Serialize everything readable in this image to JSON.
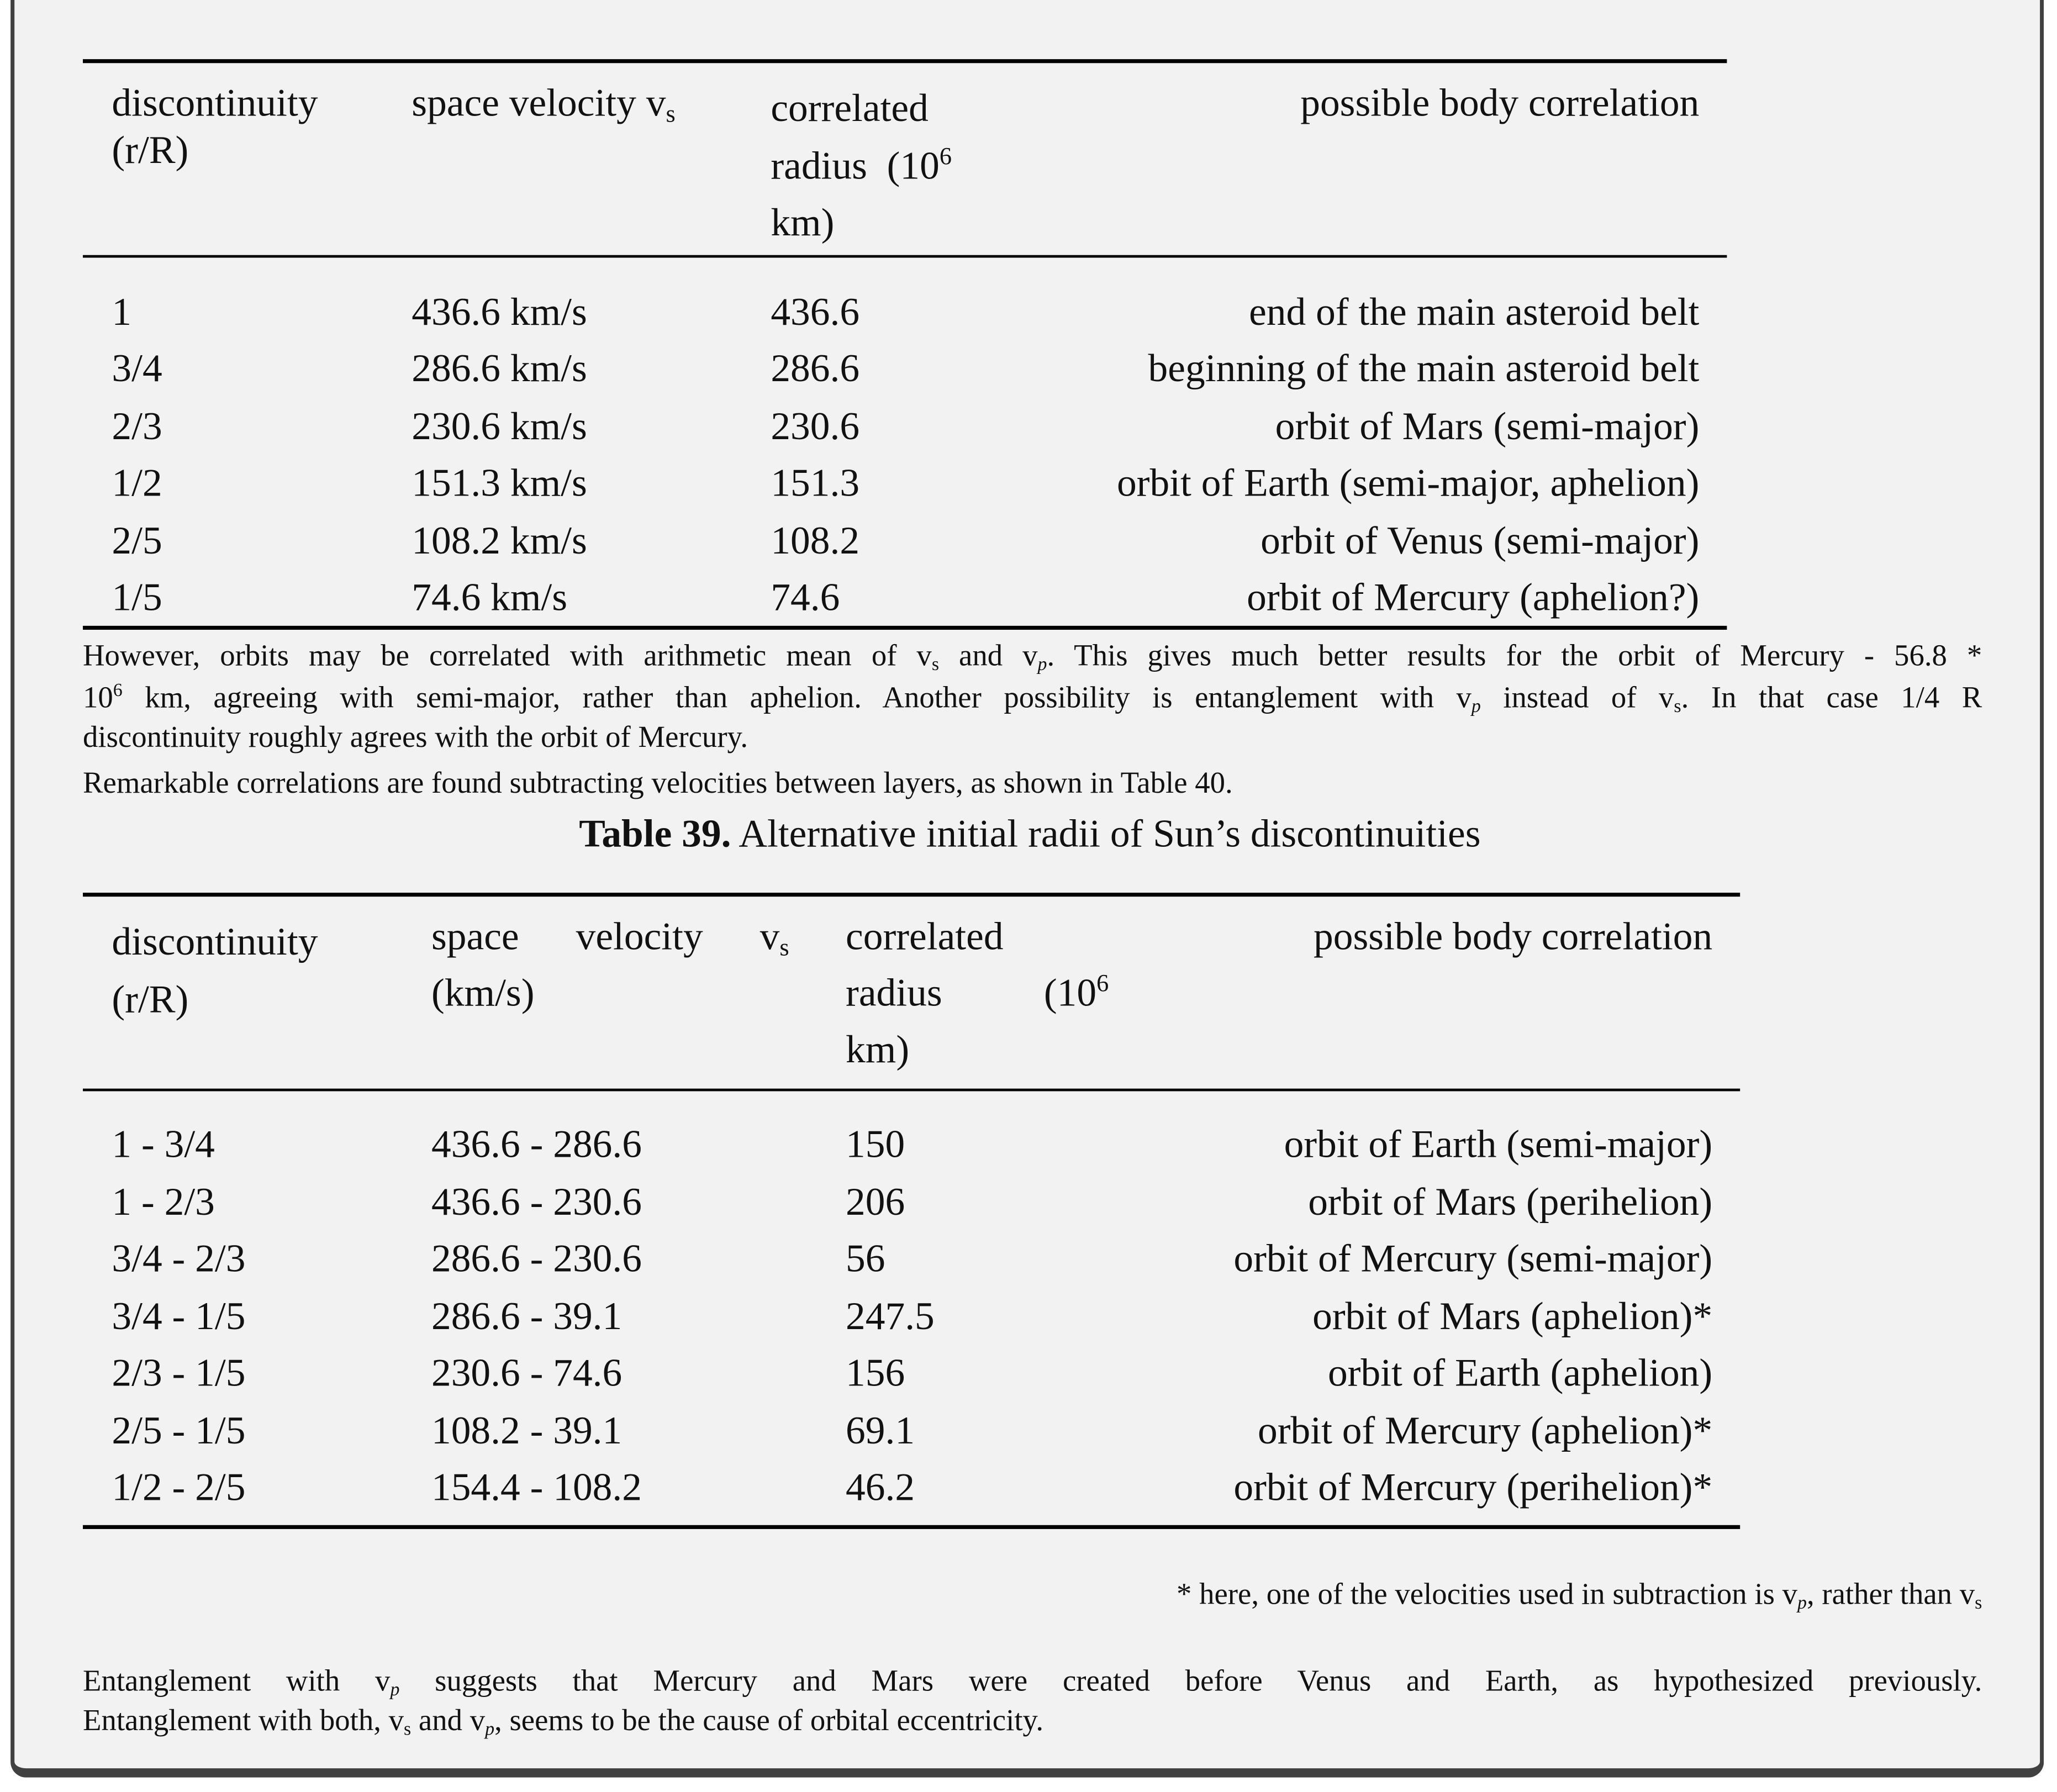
{
  "table38": {
    "headers": {
      "col1": [
        "discontinuity",
        "(r/R)"
      ],
      "col2": {
        "text": "space velocity v",
        "sub": "s"
      },
      "col3": {
        "line1": "correlated",
        "line2": "radius  (10",
        "sup": "6",
        "line3": "km)"
      },
      "col4": "possible body correlation"
    },
    "rows": [
      [
        "1",
        "436.6 km/s",
        "436.6",
        "end of the main asteroid belt"
      ],
      [
        "3/4",
        "286.6 km/s",
        "286.6",
        "beginning of the main asteroid belt"
      ],
      [
        "2/3",
        "230.6 km/s",
        "230.6",
        "orbit of Mars (semi-major)"
      ],
      [
        "1/2",
        "151.3 km/s",
        "151.3",
        "orbit of Earth (semi-major, aphelion)"
      ],
      [
        "2/5",
        "108.2 km/s",
        "108.2",
        "orbit of Venus (semi-major)"
      ],
      [
        "1/5",
        "74.6 km/s",
        "74.6",
        "orbit of Mercury (aphelion?)"
      ]
    ]
  },
  "paragraph1": {
    "l1a": "However, orbits may be correlated with arithmetic mean of v",
    "l1b": "s",
    "l1c": " and v",
    "l1d": "p",
    "l1e": ". This gives much better results for the orbit of Mercury - 56.8 *",
    "l2a": "10",
    "l2b": "6",
    "l2c": " km, agreeing with semi-major, rather than aphelion. Another possibility is entanglement with v",
    "l2d": "p",
    "l2e": " instead of v",
    "l2f": "s",
    "l2g": ". In that case 1/4 R",
    "l3": "discontinuity roughly agrees with the orbit of Mercury."
  },
  "paragraph2": "Remarkable correlations are found subtracting velocities between layers, as shown in Table 40.",
  "caption": {
    "label": "Table 39.",
    "text": " Alternative initial radii of Sun’s discontinuities"
  },
  "table39": {
    "headers": {
      "col1": [
        "discontinuity",
        "(r/R)"
      ],
      "col2": {
        "line1": "space velocity v",
        "sub": "s",
        "line2": "(km/s)"
      },
      "col3": {
        "line1": "correlated",
        "line2": "radius (10",
        "sup": "6",
        "line3": "km)"
      },
      "col4": "possible body correlation"
    },
    "rows": [
      [
        "1 - 3/4",
        "436.6 - 286.6",
        "150",
        "orbit of Earth (semi-major)"
      ],
      [
        "1 - 2/3",
        "436.6 - 230.6",
        "206",
        "orbit of Mars (perihelion)"
      ],
      [
        "3/4 - 2/3",
        "286.6 - 230.6",
        "56",
        "orbit of Mercury (semi-major)"
      ],
      [
        "3/4 - 1/5",
        "286.6 - 39.1",
        "247.5",
        "orbit of Mars (aphelion)*"
      ],
      [
        "2/3 - 1/5",
        "230.6 - 74.6",
        "156",
        "orbit of Earth (aphelion)"
      ],
      [
        "2/5 - 1/5",
        "108.2 - 39.1",
        "69.1",
        "orbit of Mercury (aphelion)*"
      ],
      [
        "1/2 - 2/5",
        "154.4 - 108.2",
        "46.2",
        "orbit of Mercury (perihelion)*"
      ]
    ]
  },
  "footnote": {
    "a": "* here, one of the velocities used in subtraction is v",
    "b": "p",
    "c": ", rather than v",
    "d": "s"
  },
  "paragraph3": {
    "l1a": "Entanglement with v",
    "l1b": "p",
    "l1c": " suggests that Mercury and Mars were created before Venus and Earth, as hypothesized previously.",
    "l2a": "Entanglement with both, v",
    "l2b": "s",
    "l2c": " and v",
    "l2d": "p",
    "l2e": ", seems to be the cause of orbital eccentricity."
  }
}
